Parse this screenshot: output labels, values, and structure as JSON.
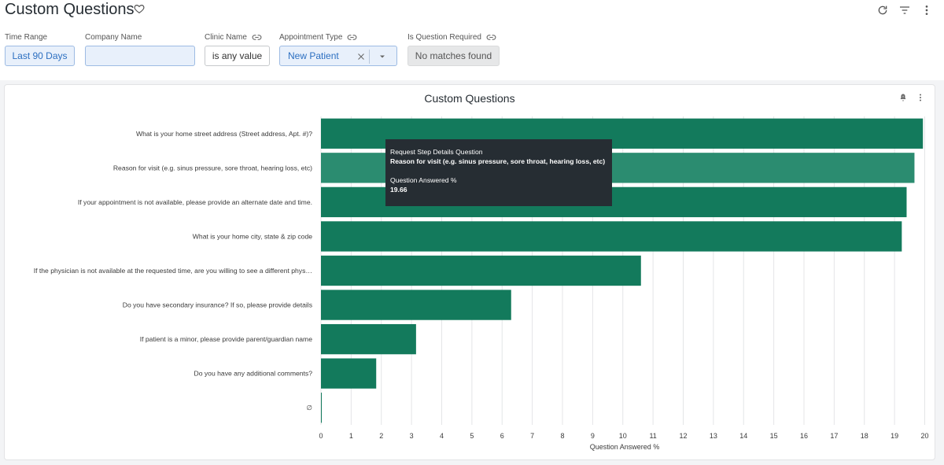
{
  "header": {
    "title": "Custom Questions",
    "icons": [
      "heart-outline-icon",
      "refresh-icon",
      "filter-icon",
      "more-vert-icon"
    ]
  },
  "filters": {
    "time_range": {
      "label": "Time Range",
      "value": "Last 90 Days"
    },
    "company_name": {
      "label": "Company Name",
      "value": ""
    },
    "clinic_name": {
      "label": "Clinic Name",
      "value": "is any value"
    },
    "appointment_type": {
      "label": "Appointment Type",
      "value": "New Patient"
    },
    "is_question_required": {
      "label": "Is Question Required",
      "value": "No matches found"
    }
  },
  "colors": {
    "bar": "#137a5c",
    "bar_highlight": "#2b8c70",
    "tooltip_bg": "#262d33",
    "filter_blue": "#2c6fc1"
  },
  "chart_data": {
    "type": "bar",
    "orientation": "horizontal",
    "title": "Custom Questions",
    "xlabel": "Question Answered %",
    "ylabel": "",
    "xlim": [
      0,
      20
    ],
    "x_ticks": [
      "0",
      "1",
      "2",
      "3",
      "4",
      "5",
      "6",
      "7",
      "8",
      "9",
      "10",
      "11",
      "12",
      "13",
      "14",
      "15",
      "16",
      "17",
      "18",
      "19",
      "20"
    ],
    "grid": "vertical",
    "categories": [
      "What is your home street address (Street address, Apt. #)?",
      "Reason for visit (e.g. sinus pressure, sore throat, hearing loss, etc)",
      "If your appointment is not available, please provide an alternate date and time.",
      "What is your home city, state & zip code",
      "If the physician is not available at the requested time, are you willing to see a different phys…",
      "Do you have secondary insurance? If so, please provide details",
      "If patient is a minor, please provide parent/guardian name",
      "Do you have any additional comments?",
      "∅"
    ],
    "values": [
      19.94,
      19.66,
      19.4,
      19.24,
      10.6,
      6.3,
      3.15,
      1.83,
      0.02
    ],
    "highlighted_index": 1
  },
  "tooltip": {
    "line1": "Request Step Details Question",
    "line2": "Reason for visit (e.g. sinus pressure, sore throat, hearing loss, etc)",
    "line3": "Question Answered %",
    "line4": "19.66"
  },
  "card_icons": [
    "alert-bell-icon",
    "more-vert-icon"
  ]
}
